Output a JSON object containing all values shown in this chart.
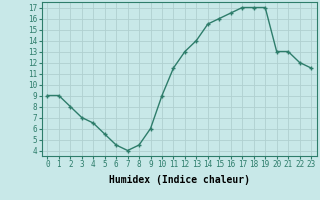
{
  "x": [
    0,
    1,
    2,
    3,
    4,
    5,
    6,
    7,
    8,
    9,
    10,
    11,
    12,
    13,
    14,
    15,
    16,
    17,
    18,
    19,
    20,
    21,
    22,
    23
  ],
  "y": [
    9.0,
    9.0,
    8.0,
    7.0,
    6.5,
    5.5,
    4.5,
    4.0,
    4.5,
    6.0,
    9.0,
    11.5,
    13.0,
    14.0,
    15.5,
    16.0,
    16.5,
    17.0,
    17.0,
    17.0,
    13.0,
    13.0,
    12.0,
    11.5
  ],
  "line_color": "#2e7d6b",
  "marker": "+",
  "marker_color": "#2e7d6b",
  "bg_color": "#c8e8e8",
  "grid_color": "#b0d0d0",
  "xlabel": "Humidex (Indice chaleur)",
  "xlim": [
    -0.5,
    23.5
  ],
  "ylim": [
    3.5,
    17.5
  ],
  "yticks": [
    4,
    5,
    6,
    7,
    8,
    9,
    10,
    11,
    12,
    13,
    14,
    15,
    16,
    17
  ],
  "xticks": [
    0,
    1,
    2,
    3,
    4,
    5,
    6,
    7,
    8,
    9,
    10,
    11,
    12,
    13,
    14,
    15,
    16,
    17,
    18,
    19,
    20,
    21,
    22,
    23
  ],
  "xtick_labels": [
    "0",
    "1",
    "2",
    "3",
    "4",
    "5",
    "6",
    "7",
    "8",
    "9",
    "10",
    "11",
    "12",
    "13",
    "14",
    "15",
    "16",
    "17",
    "18",
    "19",
    "20",
    "21",
    "22",
    "23"
  ],
  "tick_fontsize": 5.5,
  "xlabel_fontsize": 7,
  "linewidth": 1.0,
  "markersize": 3.5
}
